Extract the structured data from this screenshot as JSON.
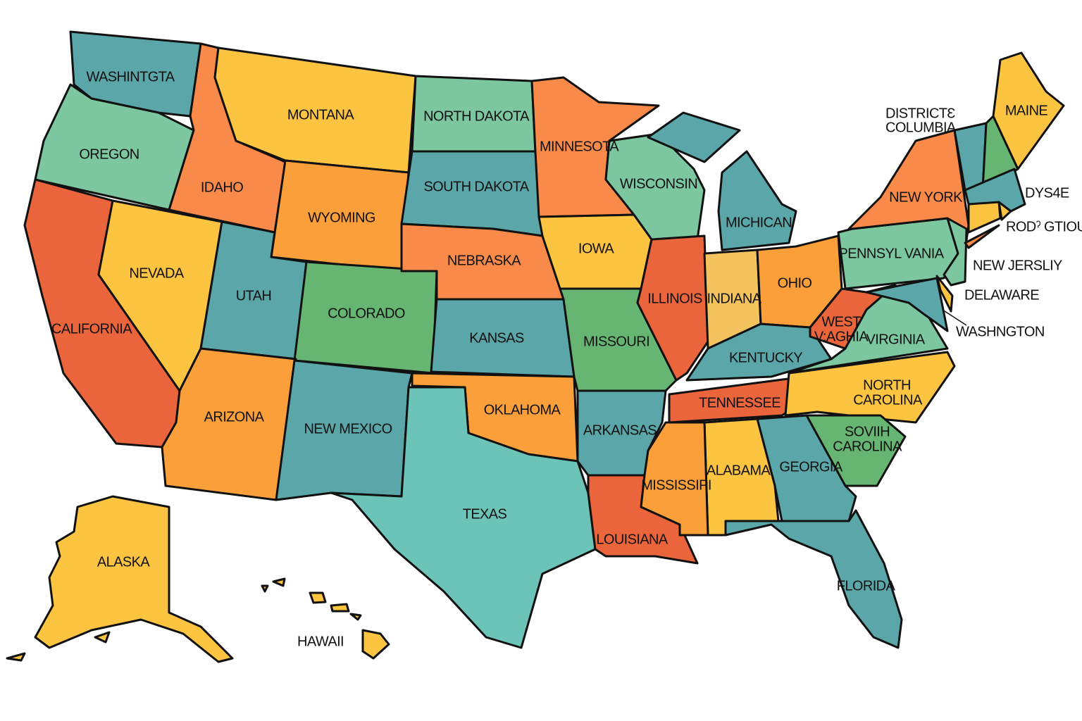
{
  "palette": {
    "teal": "#5ba6a8",
    "mint": "#7cc7a0",
    "yellow": "#fcc440",
    "orange": "#f98a4a",
    "amber": "#fa9f3a",
    "red": "#ea643c",
    "green": "#66b572",
    "aqua": "#6cc3b8",
    "pale_yellow": "#f5c35e",
    "outline": "#111111"
  },
  "states": [
    {
      "id": "washington",
      "label": "WASHINTGTA",
      "fill": "teal"
    },
    {
      "id": "oregon",
      "label": "OREGON",
      "fill": "mint"
    },
    {
      "id": "california",
      "label": "CALIFORNIA",
      "fill": "red"
    },
    {
      "id": "nevada",
      "label": "NEVADA",
      "fill": "yellow"
    },
    {
      "id": "idaho",
      "label": "IDAHO",
      "fill": "orange"
    },
    {
      "id": "montana",
      "label": "MONTANA",
      "fill": "yellow"
    },
    {
      "id": "wyoming",
      "label": "WYOMING",
      "fill": "amber"
    },
    {
      "id": "utah",
      "label": "UTAH",
      "fill": "teal"
    },
    {
      "id": "colorado",
      "label": "COLORADO",
      "fill": "green"
    },
    {
      "id": "arizona",
      "label": "ARIZONA",
      "fill": "amber"
    },
    {
      "id": "new-mexico",
      "label": "NEW MEXICO",
      "fill": "teal"
    },
    {
      "id": "north-dakota",
      "label": "NORTH DAKOTA",
      "fill": "mint"
    },
    {
      "id": "south-dakota",
      "label": "SOUTH DAKOTA",
      "fill": "teal"
    },
    {
      "id": "nebraska",
      "label": "NEBRASKA",
      "fill": "orange"
    },
    {
      "id": "kansas",
      "label": "KANSAS",
      "fill": "teal"
    },
    {
      "id": "oklahoma",
      "label": "OKLAHOMA",
      "fill": "amber"
    },
    {
      "id": "texas",
      "label": "TEXAS",
      "fill": "aqua"
    },
    {
      "id": "minnesota",
      "label": "MINNESOTA",
      "fill": "orange"
    },
    {
      "id": "iowa",
      "label": "IOWA",
      "fill": "yellow"
    },
    {
      "id": "missouri",
      "label": "MISSOURI",
      "fill": "green"
    },
    {
      "id": "arkansas",
      "label": "ARKANSAS",
      "fill": "teal"
    },
    {
      "id": "louisiana",
      "label": "LOUISIANA",
      "fill": "red"
    },
    {
      "id": "wisconsin",
      "label": "WISCONSIN",
      "fill": "mint"
    },
    {
      "id": "illinois",
      "label": "ILLINOIS",
      "fill": "red"
    },
    {
      "id": "michigan",
      "label": "MICHICAN",
      "fill": "teal"
    },
    {
      "id": "indiana",
      "label": "INDIANA",
      "fill": "pale_yellow"
    },
    {
      "id": "ohio",
      "label": "OHIO",
      "fill": "amber"
    },
    {
      "id": "kentucky",
      "label": "KENTUCKY",
      "fill": "teal"
    },
    {
      "id": "tennessee",
      "label": "TENNESSEE",
      "fill": "red"
    },
    {
      "id": "west-virginia",
      "label": "WEST V:AGHIA",
      "fill": "red"
    },
    {
      "id": "virginia",
      "label": "VIRGINIA",
      "fill": "mint"
    },
    {
      "id": "north-carolina",
      "label": "NORTH CAROLINA",
      "fill": "yellow"
    },
    {
      "id": "south-carolina",
      "label": "SOVIIH CAROLINA",
      "fill": "green"
    },
    {
      "id": "georgia",
      "label": "GEORGIA",
      "fill": "teal"
    },
    {
      "id": "florida",
      "label": "FLORIDA",
      "fill": "teal"
    },
    {
      "id": "alabama",
      "label": "ALABAMA",
      "fill": "yellow"
    },
    {
      "id": "mississippi",
      "label": "MISSISSIPI",
      "fill": "amber"
    },
    {
      "id": "pennsylvania",
      "label": "PENNSYL VANIA",
      "fill": "mint"
    },
    {
      "id": "new-york",
      "label": "NEW YORK",
      "fill": "orange"
    },
    {
      "id": "new-jersey",
      "label": "",
      "fill": "mint"
    },
    {
      "id": "maryland",
      "label": "",
      "fill": "teal"
    },
    {
      "id": "delaware",
      "label": "",
      "fill": "yellow"
    },
    {
      "id": "vermont",
      "label": "",
      "fill": "teal"
    },
    {
      "id": "new-hampshire",
      "label": "",
      "fill": "green"
    },
    {
      "id": "maine",
      "label": "MAINE",
      "fill": "yellow"
    },
    {
      "id": "massachusetts",
      "label": "",
      "fill": "teal"
    },
    {
      "id": "connecticut",
      "label": "",
      "fill": "yellow"
    },
    {
      "id": "rhode-island",
      "label": "",
      "fill": "yellow"
    },
    {
      "id": "long-island",
      "label": "",
      "fill": "orange"
    },
    {
      "id": "alaska",
      "label": "ALASKA",
      "fill": "yellow"
    },
    {
      "id": "hawaii",
      "label": "HAWAII",
      "fill": "yellow"
    }
  ],
  "callouts": [
    {
      "id": "district-of-columbia",
      "lines": [
        "DISTRICTƐ",
        "COLUMBIA"
      ]
    },
    {
      "id": "dys4e",
      "lines": [
        "DYS4E"
      ]
    },
    {
      "id": "rhode-island-callout",
      "lines": [
        "RODˀ GTIOUTT"
      ]
    },
    {
      "id": "new-jersey-callout",
      "lines": [
        "NEW JERSLIY"
      ]
    },
    {
      "id": "delaware-callout",
      "lines": [
        "DELAWARE"
      ]
    },
    {
      "id": "washington-dc-callout",
      "lines": [
        "WASHNGTON"
      ]
    }
  ]
}
